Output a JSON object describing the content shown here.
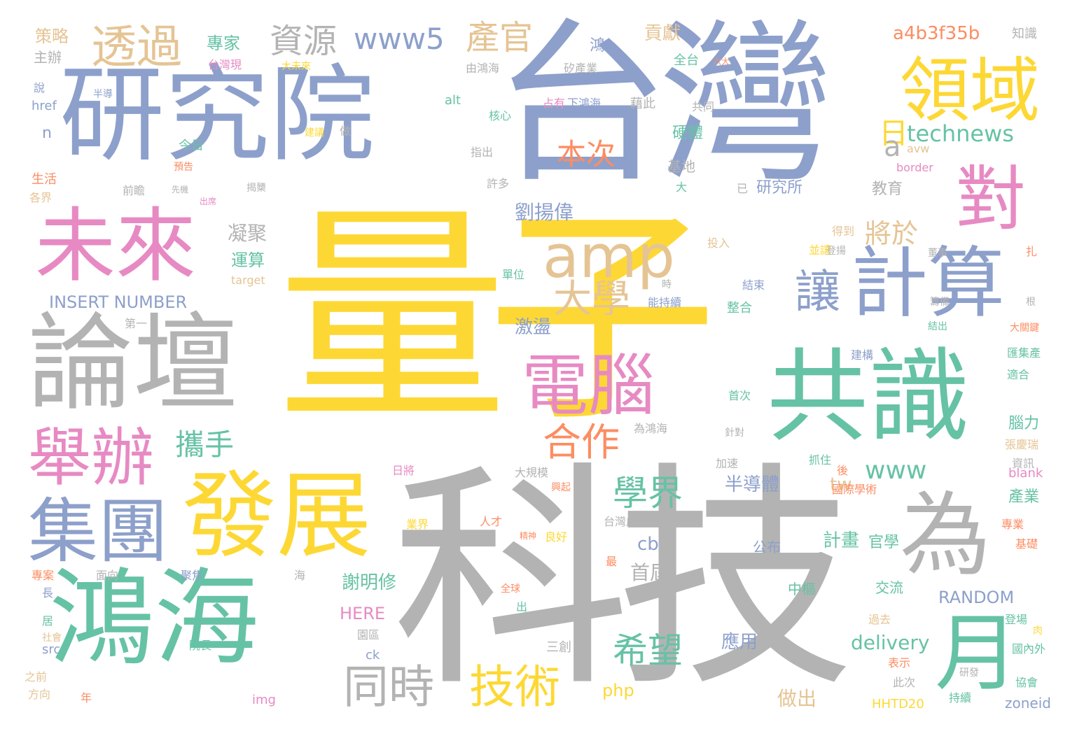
{
  "palette": {
    "yellow": "#fdd835",
    "gray": "#b3b3b3",
    "blue": "#8da0cb",
    "pink": "#e78ac3",
    "green": "#66c2a5",
    "tan": "#e5c494",
    "orange": "#fc8d62",
    "lime": "#a6d854"
  },
  "words": {
    "liangzi": "量子",
    "keji": "科技",
    "taiwan": "台灣",
    "yanjiuyuan": "研究院",
    "luntan": "論壇",
    "honghai": "鴻海",
    "gongshi": "共識",
    "fazhan": "發展",
    "weilai": "未來",
    "jisuan": "計算",
    "lingyu": "領域",
    "jituan": "集團",
    "juban": "舉辦",
    "wei": "為",
    "dui": "對",
    "diannao": "電腦",
    "amp": "amp",
    "yue": "月",
    "touguo": "透過",
    "jishu": "技術",
    "rang": "讓",
    "tongshi": "同時",
    "daxue": "大學",
    "hezuo": "合作",
    "xuejie": "學界",
    "ziyuan": "資源",
    "chanxguan": "產官",
    "www5": "www5",
    "xiwang": "希望",
    "xieshou": "攜手",
    "benci": "本次",
    "ri": "日",
    "www": "www",
    "technews": "technews",
    "jiangyu": "將於",
    "liuyangwei": "劉揚偉",
    "a4b3f35b": "a4b3f35b",
    "gongxian": "貢獻",
    "zhuanjia": "專家",
    "celue": "策略",
    "zhuban": "主辦",
    "zhishi": "知識",
    "a": "a",
    "ningju": "凝聚",
    "yunsuan": "運算",
    "insert": "INSERT NUMBER",
    "jidang": "激盪",
    "bandaoti": "半導體",
    "xiemingxiu": "謝明修",
    "random": "RANDOM",
    "delivery": "delivery",
    "jihua": "計畫",
    "guanxue": "官學",
    "shoujie": "首屆",
    "yingyong": "應用",
    "zuochu": "做出",
    "php": "php",
    "here": "HERE",
    "tw": "tw",
    "cb": "cb",
    "yanjiusuo": "研究所",
    "jiaoyu": "教育",
    "yingti": "硬體",
    "jidi": "基地",
    "jiaoliu": "交流",
    "zhongshu": "中樞",
    "gongbu": "公布",
    "naoli": "腦力",
    "chanye": "產業",
    "zoneid": "zoneid",
    "hhtd20": "HHTD20",
    "blank": "blank",
    "border": "border",
    "href": "href",
    "n": "n",
    "alt": "alt",
    "src": "src",
    "ck": "ck",
    "img": "img",
    "target": "target",
    "avw": "avw",
    "taiwanxian": "台灣現",
    "shengchanye": "矽產業",
    "hong": "鴻",
    "quantai": "全台",
    "youhonghai": "由鴻海",
    "hexin": "核心",
    "zhanyou": "占有",
    "xiahonghai": "下鴻海",
    "jieci": "藉此",
    "gongtong": "共同",
    "jinri": "今日",
    "shenghuo": "生活",
    "gejie": "各界",
    "shuo": "說",
    "banda": "半導",
    "qianzhan": "前瞻",
    "zhichu": "指出",
    "xuduo": "許多",
    "jieshu": "結束",
    "zhenghe": "整合",
    "tourus": "投入",
    "bingrang": "並讓",
    "danwei": "單位",
    "nengchixu": "能持續",
    "diyi": "第一",
    "dedao": "得到",
    "jiangou": "建構",
    "huijichan": "匯集產",
    "shihe": "適合",
    "zhanghuirui": "張慶瑞",
    "zixun": "資訊",
    "shouci": "首次",
    "zhendui": "針對",
    "weihonghai": "為鴻海",
    "jiasu": "加速",
    "rijiang": "日將",
    "daguimo": "大規模",
    "guojixueshu": "國際學術",
    "zhuanye": "專業",
    "jichu": "基礎",
    "taiwancheng": "台灣成",
    "rencai": "人才",
    "yejie": "業界",
    "liangyu": "良好",
    "mianxiang": "面向",
    "juju": "聚焦",
    "zhuanan": "專案",
    "chang": "長",
    "ju": "居",
    "shehui": "社會",
    "zhiqian": "之前",
    "fangxiang": "方向",
    "nian": "年",
    "yuanchang": "院長",
    "yuanqu": "園區",
    "sanchuang": "三創",
    "guonei": "國內外",
    "xiehui": "協會",
    "chixu": "持續",
    "yanfa": "研發",
    "dengchang": "登場",
    "guoqu": "過去",
    "biaoshi": "表示",
    "cici": "此次",
    "zhuazhu": "抓住",
    "hou": "後",
    "quanqiu": "全球",
    "chu": "出",
    "hai": "海",
    "zui": "最",
    "yuce": "預告",
    "jieyi": "揭櫫",
    "jianyi": "建議",
    "zuo": "做",
    "dongshi": "董事",
    "choubei": "籌備",
    "zha": "扎",
    "gen": "根",
    "dadaguan": "大關鍵",
    "xianji": "先機",
    "chuxi": "出席",
    "jiezhi": "結出",
    "liuda": "六大",
    "damilai": "大未來",
    "dali": "大",
    "yi": "已",
    "shi": "時",
    "dengyang": "登揚",
    "rou": "肉",
    "jingsheng": "精神",
    "xiangfa": "興起"
  }
}
